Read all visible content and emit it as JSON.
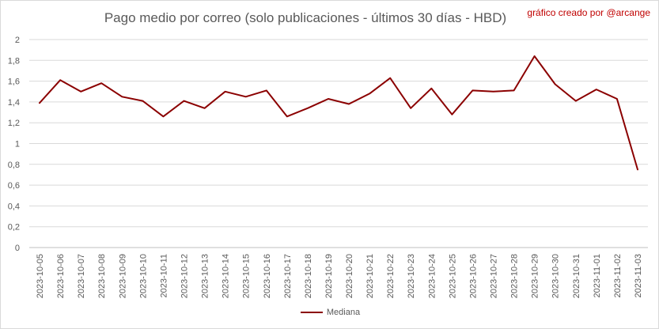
{
  "chart": {
    "title": "Pago medio por correo (solo publicaciones - últimos 30 días - HBD)",
    "credit": "gráfico creado por @arcange"
  },
  "chart_data": {
    "type": "line",
    "title": "Pago medio por correo (solo publicaciones - últimos 30 días - HBD)",
    "xlabel": "",
    "ylabel": "",
    "ylim": [
      0,
      2
    ],
    "yticks": [
      "0",
      "0,2",
      "0,4",
      "0,6",
      "0,8",
      "1",
      "1,2",
      "1,4",
      "1,6",
      "1,8",
      "2"
    ],
    "grid": true,
    "legend_position": "bottom",
    "line_color": "#8b0000",
    "categories": [
      "2023-10-05",
      "2023-10-06",
      "2023-10-07",
      "2023-10-08",
      "2023-10-09",
      "2023-10-10",
      "2023-10-11",
      "2023-10-12",
      "2023-10-13",
      "2023-10-14",
      "2023-10-15",
      "2023-10-16",
      "2023-10-17",
      "2023-10-18",
      "2023-10-19",
      "2023-10-20",
      "2023-10-21",
      "2023-10-22",
      "2023-10-23",
      "2023-10-24",
      "2023-10-25",
      "2023-10-26",
      "2023-10-27",
      "2023-10-28",
      "2023-10-29",
      "2023-10-30",
      "2023-10-31",
      "2023-11-01",
      "2023-11-02",
      "2023-11-03"
    ],
    "series": [
      {
        "name": "Mediana",
        "values": [
          1.39,
          1.61,
          1.5,
          1.58,
          1.45,
          1.41,
          1.26,
          1.41,
          1.34,
          1.5,
          1.45,
          1.51,
          1.26,
          1.34,
          1.43,
          1.38,
          1.48,
          1.63,
          1.34,
          1.53,
          1.28,
          1.51,
          1.5,
          1.51,
          1.84,
          1.57,
          1.41,
          1.52,
          1.43,
          0.75
        ]
      }
    ]
  }
}
